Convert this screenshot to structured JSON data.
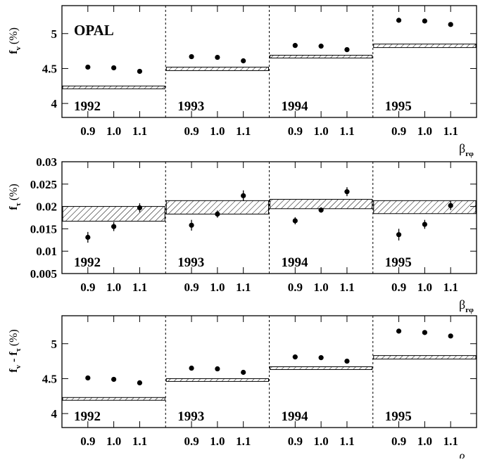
{
  "chart_data": [
    {
      "type": "scatter",
      "ylabel": "f_v (%)",
      "ylabel_main": "f",
      "ylabel_sub": "v",
      "ylabel_tail": "(%)",
      "ylim": [
        3.8,
        5.4
      ],
      "yticks": [
        4,
        4.5,
        5
      ],
      "ytick_labels": [
        "4",
        "4.5",
        "5"
      ],
      "xlabel": "β_rφ",
      "xlabel_main": "β",
      "xlabel_sub": "rφ",
      "annotation": "OPAL",
      "panels": [
        {
          "year": "1992",
          "x": [
            "0.9",
            "1.0",
            "1.1"
          ],
          "values": [
            4.52,
            4.51,
            4.46
          ],
          "errors": [
            0.008,
            0.008,
            0.008
          ],
          "band": [
            4.21,
            4.25
          ]
        },
        {
          "year": "1993",
          "x": [
            "0.9",
            "1.0",
            "1.1"
          ],
          "values": [
            4.67,
            4.66,
            4.61
          ],
          "errors": [
            0.008,
            0.008,
            0.008
          ],
          "band": [
            4.47,
            4.52
          ]
        },
        {
          "year": "1994",
          "x": [
            "0.9",
            "1.0",
            "1.1"
          ],
          "values": [
            4.83,
            4.82,
            4.77
          ],
          "errors": [
            0.008,
            0.008,
            0.008
          ],
          "band": [
            4.65,
            4.69
          ]
        },
        {
          "year": "1995",
          "x": [
            "0.9",
            "1.0",
            "1.1"
          ],
          "values": [
            5.19,
            5.18,
            5.13
          ],
          "errors": [
            0.008,
            0.008,
            0.008
          ],
          "band": [
            4.8,
            4.85
          ]
        }
      ]
    },
    {
      "type": "scatter",
      "ylabel": "f_τ (%)",
      "ylabel_main": "f",
      "ylabel_sub": "τ",
      "ylabel_tail": "(%)",
      "ylim": [
        0.005,
        0.03
      ],
      "yticks": [
        0.005,
        0.01,
        0.015,
        0.02,
        0.025,
        0.03
      ],
      "ytick_labels": [
        "0.005",
        "0.01",
        "0.015",
        "0.02",
        "0.025",
        "0.03"
      ],
      "xlabel": "β_rφ",
      "xlabel_main": "β",
      "xlabel_sub": "rφ",
      "annotation": "",
      "panels": [
        {
          "year": "1992",
          "x": [
            "0.9",
            "1.0",
            "1.1"
          ],
          "values": [
            0.0131,
            0.0155,
            0.0197
          ],
          "errors": [
            0.0012,
            0.001,
            0.001
          ],
          "band": [
            0.0167,
            0.02
          ]
        },
        {
          "year": "1993",
          "x": [
            "0.9",
            "1.0",
            "1.1"
          ],
          "values": [
            0.0158,
            0.0183,
            0.0224
          ],
          "errors": [
            0.0012,
            0.0008,
            0.0012
          ],
          "band": [
            0.0183,
            0.0213
          ]
        },
        {
          "year": "1994",
          "x": [
            "0.9",
            "1.0",
            "1.1"
          ],
          "values": [
            0.0168,
            0.0192,
            0.0233
          ],
          "errors": [
            0.0008,
            0.0006,
            0.001
          ],
          "band": [
            0.0195,
            0.0216
          ]
        },
        {
          "year": "1995",
          "x": [
            "0.9",
            "1.0",
            "1.1"
          ],
          "values": [
            0.0137,
            0.016,
            0.0202
          ],
          "errors": [
            0.0013,
            0.001,
            0.001
          ],
          "band": [
            0.0184,
            0.0213
          ]
        }
      ]
    },
    {
      "type": "scatter",
      "ylabel": "f_v - f_τ (%)",
      "ylabel_main": "f",
      "ylabel_sub": "v",
      "ylabel_mid": " - f",
      "ylabel_sub2": "τ",
      "ylabel_tail": "(%)",
      "ylim": [
        3.8,
        5.4
      ],
      "yticks": [
        4,
        4.5,
        5
      ],
      "ytick_labels": [
        "4",
        "4.5",
        "5"
      ],
      "xlabel": "β_rφ",
      "xlabel_main": "β",
      "xlabel_sub": "rφ",
      "annotation": "",
      "panels": [
        {
          "year": "1992",
          "x": [
            "0.9",
            "1.0",
            "1.1"
          ],
          "values": [
            4.51,
            4.49,
            4.44
          ],
          "errors": [
            0.008,
            0.008,
            0.008
          ],
          "band": [
            4.19,
            4.23
          ]
        },
        {
          "year": "1993",
          "x": [
            "0.9",
            "1.0",
            "1.1"
          ],
          "values": [
            4.65,
            4.64,
            4.59
          ],
          "errors": [
            0.008,
            0.008,
            0.008
          ],
          "band": [
            4.46,
            4.5
          ]
        },
        {
          "year": "1994",
          "x": [
            "0.9",
            "1.0",
            "1.1"
          ],
          "values": [
            4.81,
            4.8,
            4.75
          ],
          "errors": [
            0.008,
            0.008,
            0.008
          ],
          "band": [
            4.63,
            4.67
          ]
        },
        {
          "year": "1995",
          "x": [
            "0.9",
            "1.0",
            "1.1"
          ],
          "values": [
            5.18,
            5.16,
            5.11
          ],
          "errors": [
            0.008,
            0.008,
            0.008
          ],
          "band": [
            4.78,
            4.83
          ]
        }
      ]
    }
  ]
}
